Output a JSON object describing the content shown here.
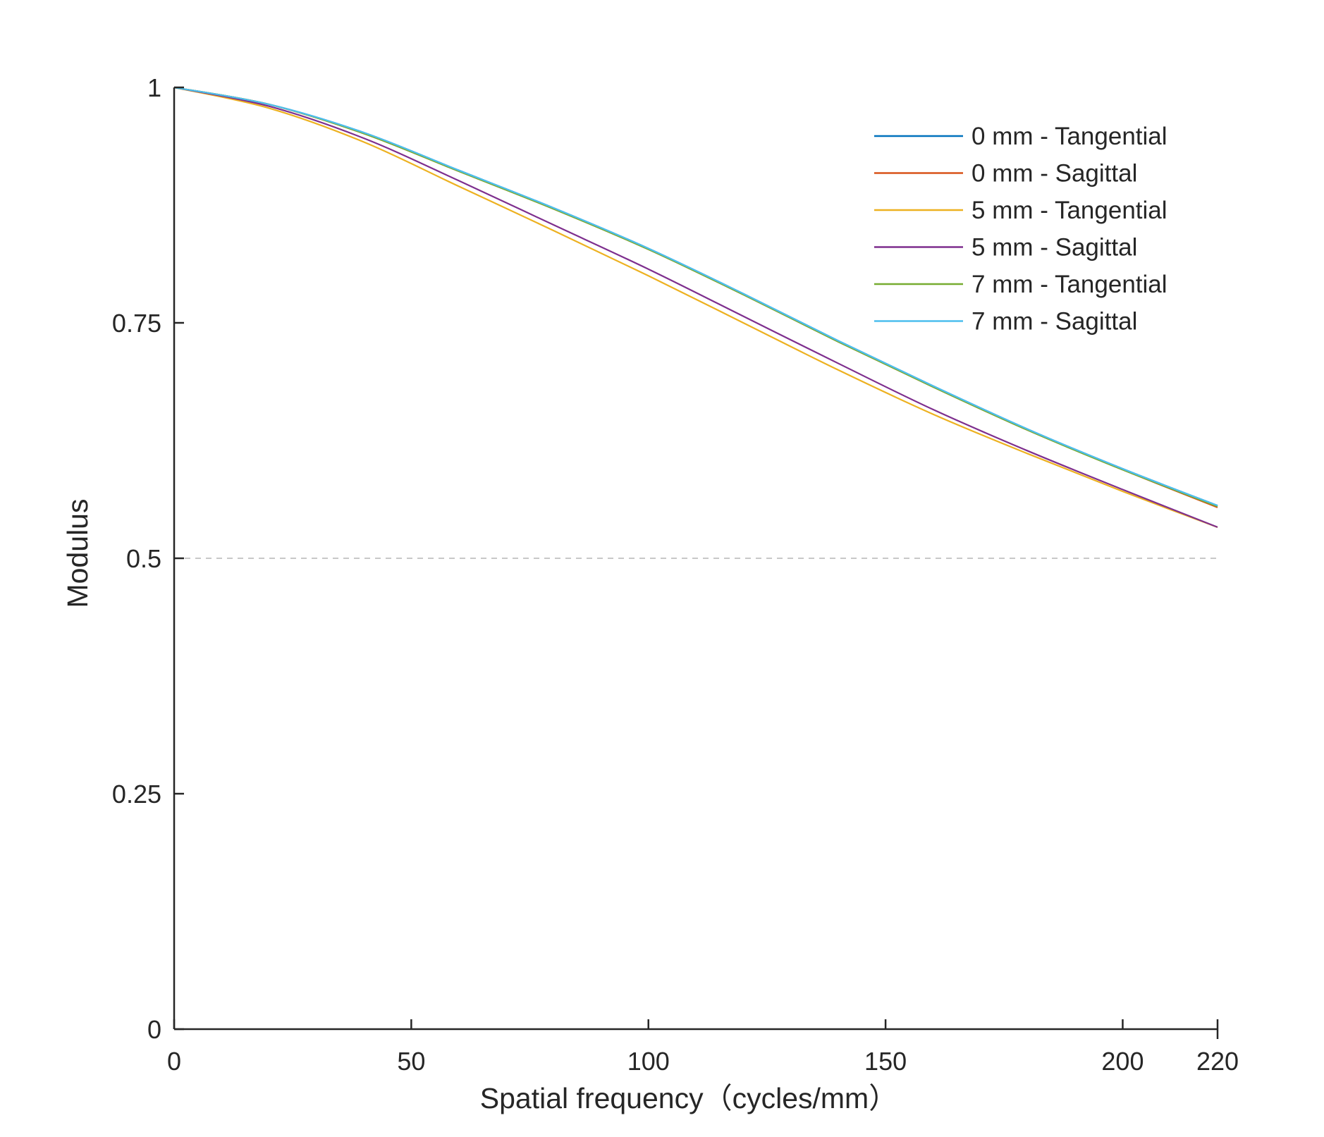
{
  "chart_data": {
    "type": "line",
    "xlabel": "Spatial frequency（cycles/mm）",
    "ylabel": "Modulus",
    "xlim": [
      0,
      220
    ],
    "ylim": [
      0,
      1
    ],
    "xticks": [
      0,
      50,
      100,
      150,
      200,
      220
    ],
    "xtick_labels": [
      "0",
      "50",
      "100",
      "150",
      "200",
      "220"
    ],
    "yticks": [
      0,
      0.25,
      0.5,
      0.75,
      1
    ],
    "ytick_labels": [
      "0",
      "0.25",
      "0.5",
      "0.75",
      "1"
    ],
    "reference_line": {
      "y": 0.5,
      "style": "dashed",
      "color": "#c8c8c8"
    },
    "grid": false,
    "legend_position": "top-right",
    "x": [
      0,
      20,
      40,
      60,
      80,
      100,
      120,
      140,
      160,
      180,
      200,
      220
    ],
    "series": [
      {
        "name": "0 mm - Tangential",
        "color": "#0072BD",
        "values": [
          1.0,
          0.982,
          0.952,
          0.912,
          0.872,
          0.829,
          0.781,
          0.731,
          0.683,
          0.637,
          0.595,
          0.556
        ]
      },
      {
        "name": "0 mm - Sagittal",
        "color": "#D95319",
        "values": [
          1.0,
          0.982,
          0.951,
          0.911,
          0.871,
          0.828,
          0.78,
          0.73,
          0.682,
          0.636,
          0.594,
          0.554
        ]
      },
      {
        "name": "5 mm - Tangential",
        "color": "#EDB120",
        "values": [
          1.0,
          0.978,
          0.942,
          0.895,
          0.848,
          0.8,
          0.75,
          0.7,
          0.653,
          0.611,
          0.571,
          0.533
        ]
      },
      {
        "name": "5 mm - Sagittal",
        "color": "#7E2F8E",
        "values": [
          1.0,
          0.98,
          0.946,
          0.901,
          0.854,
          0.807,
          0.757,
          0.707,
          0.658,
          0.614,
          0.573,
          0.533
        ]
      },
      {
        "name": "7 mm - Tangential",
        "color": "#77AC30",
        "values": [
          1.0,
          0.982,
          0.951,
          0.911,
          0.871,
          0.828,
          0.78,
          0.73,
          0.682,
          0.636,
          0.594,
          0.555
        ]
      },
      {
        "name": "7 mm - Sagittal",
        "color": "#4DBEEE",
        "values": [
          1.0,
          0.982,
          0.952,
          0.912,
          0.872,
          0.829,
          0.781,
          0.731,
          0.683,
          0.637,
          0.595,
          0.556
        ]
      }
    ]
  }
}
